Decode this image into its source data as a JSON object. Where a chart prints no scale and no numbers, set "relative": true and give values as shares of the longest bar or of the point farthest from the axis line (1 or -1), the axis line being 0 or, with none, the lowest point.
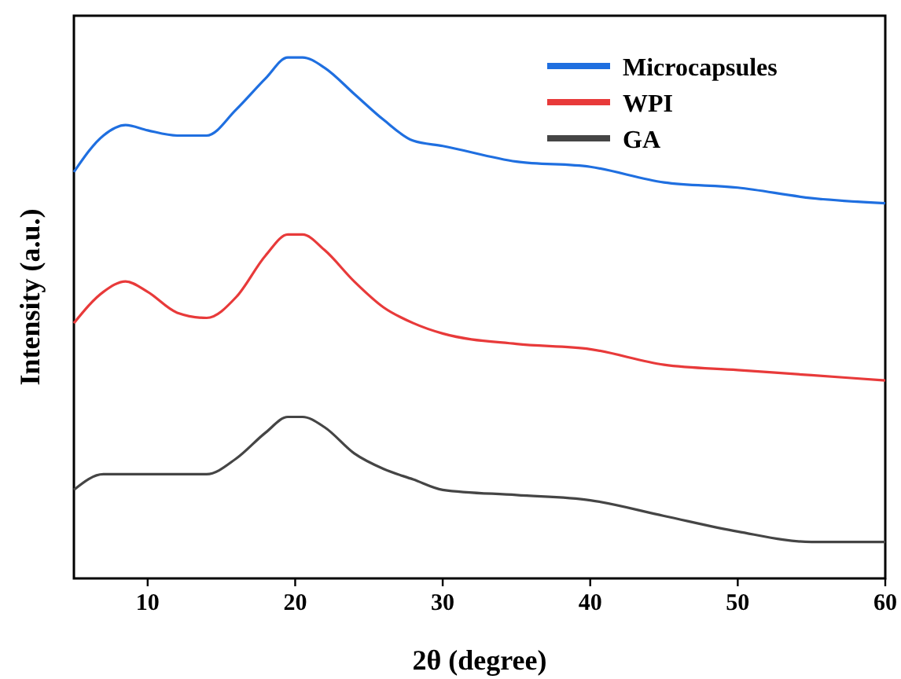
{
  "chart_data": {
    "type": "line",
    "xlabel": "2θ (degree)",
    "ylabel": "Intensity (a.u.)",
    "relative": true,
    "xlim": [
      5,
      60
    ],
    "xticks": [
      10,
      20,
      30,
      40,
      50,
      60
    ],
    "legend": "top right",
    "grid": false,
    "x": [
      5,
      7,
      8.5,
      10,
      12,
      14,
      16,
      18,
      19.5,
      20.5,
      22,
      24,
      26,
      28,
      30,
      35,
      40,
      45,
      50,
      55,
      60
    ],
    "series": [
      {
        "name": "Microcapsules",
        "color": "#1f6fe0",
        "values": [
          0.78,
          0.85,
          0.87,
          0.86,
          0.85,
          0.85,
          0.9,
          0.96,
          1.0,
          1.0,
          0.98,
          0.93,
          0.88,
          0.84,
          0.83,
          0.8,
          0.79,
          0.76,
          0.75,
          0.73,
          0.72
        ]
      },
      {
        "name": "WPI",
        "color": "#e83a3a",
        "values": [
          0.49,
          0.55,
          0.57,
          0.55,
          0.51,
          0.5,
          0.54,
          0.62,
          0.66,
          0.66,
          0.63,
          0.57,
          0.52,
          0.49,
          0.47,
          0.45,
          0.44,
          0.41,
          0.4,
          0.39,
          0.38
        ]
      },
      {
        "name": "GA",
        "color": "#454545",
        "values": [
          0.17,
          0.2,
          0.2,
          0.2,
          0.2,
          0.2,
          0.23,
          0.28,
          0.31,
          0.31,
          0.29,
          0.24,
          0.21,
          0.19,
          0.17,
          0.16,
          0.15,
          0.12,
          0.09,
          0.07,
          0.07
        ]
      }
    ]
  }
}
